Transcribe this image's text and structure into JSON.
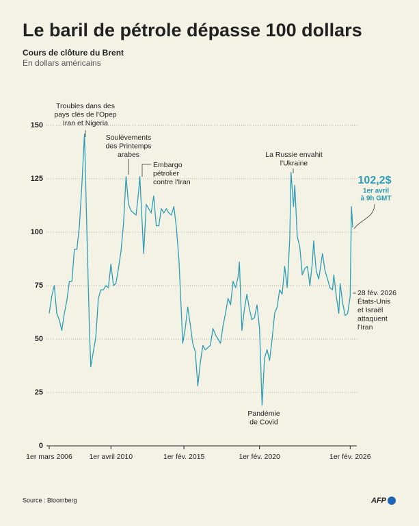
{
  "chart_data": {
    "type": "line",
    "title": "Le baril de pétrole dépasse 100 dollars",
    "subtitle": "Cours de clôture du Brent",
    "unit_note": "En dollars américains",
    "source": "Source : Bloomberg",
    "logo": "AFP",
    "grid": true,
    "xlim": [
      "2006-03",
      "2026-04"
    ],
    "ylim": [
      0,
      150
    ],
    "yticks": [
      0,
      25,
      50,
      75,
      100,
      125,
      150
    ],
    "xticks": [
      {
        "value": "2006-03",
        "label": "1er mars 2006"
      },
      {
        "value": "2010-04",
        "label": "1er avril 2010"
      },
      {
        "value": "2015-02",
        "label": "1er fév. 2015"
      },
      {
        "value": "2020-02",
        "label": "1er fév. 2020"
      },
      {
        "value": "2026-02",
        "label": "1er fév. 2026"
      }
    ],
    "x": [
      "2006-03",
      "2006-05",
      "2006-07",
      "2006-09",
      "2006-11",
      "2007-01",
      "2007-03",
      "2007-05",
      "2007-07",
      "2007-09",
      "2007-11",
      "2008-01",
      "2008-03",
      "2008-05",
      "2008-07",
      "2008-09",
      "2008-11",
      "2008-12",
      "2009-02",
      "2009-04",
      "2009-06",
      "2009-08",
      "2009-10",
      "2009-12",
      "2010-02",
      "2010-04",
      "2010-06",
      "2010-08",
      "2010-10",
      "2010-12",
      "2011-02",
      "2011-04",
      "2011-06",
      "2011-08",
      "2011-10",
      "2011-12",
      "2012-02",
      "2012-03",
      "2012-06",
      "2012-08",
      "2012-10",
      "2012-12",
      "2013-02",
      "2013-04",
      "2013-06",
      "2013-08",
      "2013-10",
      "2013-12",
      "2014-02",
      "2014-04",
      "2014-06",
      "2014-08",
      "2014-10",
      "2014-12",
      "2015-01",
      "2015-03",
      "2015-05",
      "2015-07",
      "2015-09",
      "2015-11",
      "2016-01",
      "2016-03",
      "2016-05",
      "2016-07",
      "2016-09",
      "2016-11",
      "2017-01",
      "2017-03",
      "2017-05",
      "2017-07",
      "2017-09",
      "2017-11",
      "2018-01",
      "2018-03",
      "2018-05",
      "2018-07",
      "2018-09",
      "2018-10",
      "2018-12",
      "2019-02",
      "2019-04",
      "2019-06",
      "2019-08",
      "2019-10",
      "2019-12",
      "2020-02",
      "2020-04",
      "2020-06",
      "2020-08",
      "2020-10",
      "2020-12",
      "2021-02",
      "2021-04",
      "2021-06",
      "2021-08",
      "2021-10",
      "2021-12",
      "2022-02",
      "2022-03",
      "2022-05",
      "2022-06",
      "2022-08",
      "2022-10",
      "2022-12",
      "2023-02",
      "2023-04",
      "2023-06",
      "2023-08",
      "2023-09",
      "2023-11",
      "2024-01",
      "2024-04",
      "2024-06",
      "2024-08",
      "2024-10",
      "2024-12",
      "2025-01",
      "2025-03",
      "2025-05",
      "2025-06",
      "2025-08",
      "2025-10",
      "2025-12",
      "2026-02",
      "2026-03",
      "2026-04"
    ],
    "series": [
      {
        "name": "Brent",
        "color": "#2b9db6",
        "values": [
          62,
          70,
          75,
          62,
          59,
          54,
          62,
          68,
          77,
          77,
          92,
          92,
          103,
          123,
          146,
          98,
          53,
          37,
          44,
          51,
          69,
          73,
          73,
          75,
          74,
          85,
          75,
          76,
          83,
          91,
          104,
          126,
          113,
          110,
          109,
          108,
          119,
          126,
          90,
          113,
          111,
          109,
          117,
          103,
          103,
          111,
          109,
          111,
          109,
          108,
          112,
          102,
          87,
          62,
          48,
          55,
          65,
          57,
          48,
          44,
          28,
          39,
          47,
          45,
          46,
          47,
          55,
          52,
          50,
          48,
          56,
          62,
          69,
          66,
          77,
          74,
          79,
          86,
          54,
          64,
          71,
          64,
          59,
          60,
          66,
          55,
          19,
          41,
          45,
          40,
          50,
          62,
          65,
          73,
          71,
          84,
          74,
          97,
          128,
          112,
          122,
          98,
          93,
          80,
          83,
          84,
          75,
          86,
          96,
          82,
          78,
          90,
          82,
          78,
          74,
          73,
          80,
          70,
          62,
          76,
          67,
          61,
          62,
          70,
          112,
          102.2
        ]
      }
    ],
    "annotations": [
      {
        "lines": [
          "Troubles dans des",
          "pays clés de l'Opep",
          "Iran et Nigeria"
        ]
      },
      {
        "lines": [
          "Soulèvements",
          "des Printemps",
          "arabes"
        ]
      },
      {
        "lines": [
          "Embargo",
          "pétrolier",
          "contre l'Iran"
        ]
      },
      {
        "lines": [
          "La Russie envahit",
          "l'Ukraine"
        ]
      },
      {
        "lines": [
          "Pandémie",
          "de Covid"
        ]
      },
      {
        "lines": [
          "28 fév. 2026",
          "États-Unis",
          "et Israël",
          "attaquent",
          "l'Iran"
        ]
      }
    ],
    "last_label": {
      "value": "102,2$",
      "lines": [
        "1er avril",
        "à 9h GMT"
      ]
    }
  }
}
